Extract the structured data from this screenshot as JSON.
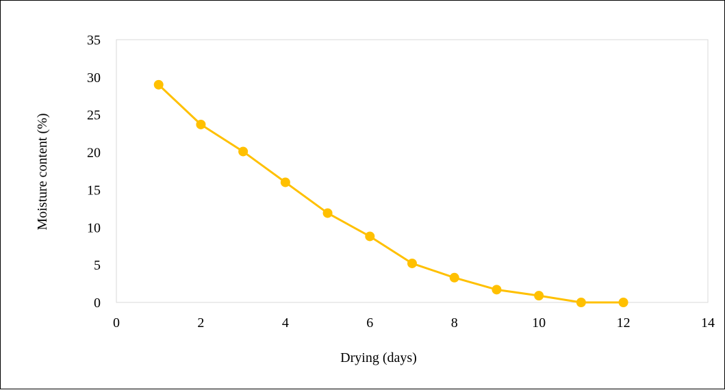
{
  "chart_data": {
    "type": "scatter",
    "title": "",
    "xlabel": "Drying (days)",
    "ylabel": "Moisture content (%)",
    "xlim": [
      0,
      14
    ],
    "ylim": [
      0,
      35
    ],
    "xticks": [
      0,
      2,
      4,
      6,
      8,
      10,
      12,
      14
    ],
    "yticks": [
      0,
      5,
      10,
      15,
      20,
      25,
      30,
      35
    ],
    "grid": false,
    "legend": "none",
    "series": [
      {
        "color": "#FFC000",
        "lines": true,
        "markers": true,
        "x": [
          1,
          2,
          3,
          4,
          5,
          6,
          7,
          8,
          9,
          10,
          11,
          12
        ],
        "y": [
          29.0,
          23.7,
          20.1,
          16.0,
          11.9,
          8.8,
          5.2,
          3.3,
          1.7,
          0.9,
          0.0,
          0.0
        ]
      }
    ]
  }
}
